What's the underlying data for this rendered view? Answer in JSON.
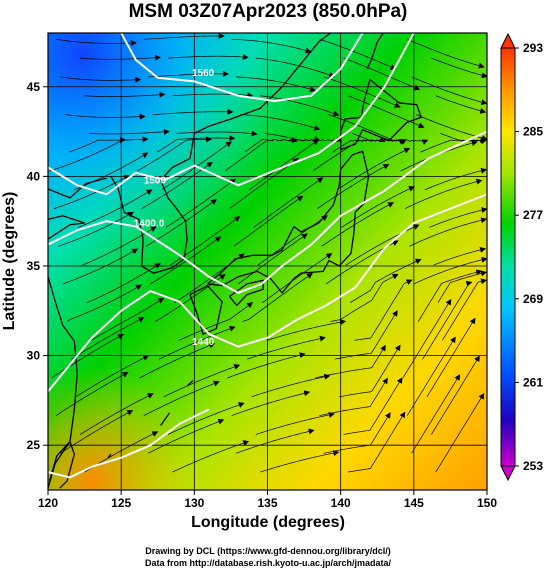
{
  "title": "MSM 03Z07Apr2023 (850.0hPa)",
  "xaxis": {
    "label": "Longitude (degrees)",
    "range": [
      120,
      150
    ],
    "ticks": [
      120,
      125,
      130,
      135,
      140,
      145,
      150
    ],
    "tick_labels": [
      "120",
      "125",
      "130",
      "135",
      "140",
      "145",
      "150"
    ]
  },
  "yaxis": {
    "label": "Latitude  (degrees)",
    "range": [
      22.5,
      48
    ],
    "ticks": [
      25,
      30,
      35,
      40,
      45
    ],
    "tick_labels": [
      "25",
      "30",
      "35",
      "40",
      "45"
    ]
  },
  "colorbar": {
    "range": [
      253,
      293
    ],
    "ticks": [
      253,
      261,
      269,
      277,
      285,
      293
    ],
    "tick_labels": [
      "253",
      "261",
      "269",
      "277",
      "285",
      "293"
    ],
    "colors": [
      "#cc00cc",
      "#2000c0",
      "#0050ff",
      "#00c8ff",
      "#00e0a0",
      "#00d200",
      "#a0e600",
      "#ffe600",
      "#ff9900",
      "#ff3300"
    ]
  },
  "contours": [
    {
      "label": "1560",
      "lon": 130.6,
      "lat": 45.6
    },
    {
      "label": "1500",
      "lon": 127.3,
      "lat": 39.6
    },
    {
      "label": "1440",
      "lon": 130.6,
      "lat": 30.6
    },
    {
      "label": "1400.0",
      "lon": 126.9,
      "lat": 37.2
    }
  ],
  "credits": {
    "line1": "Drawing by DCL (https://www.gfd-dennou.org/library/dcl/)",
    "line2": "Data from http://database.rish.kyoto-u.ac.jp/arch/jmadata/"
  },
  "colors": {
    "frame": "#000000",
    "contour": "#ffffff",
    "streamline": "#000000",
    "coast": "#000000"
  }
}
